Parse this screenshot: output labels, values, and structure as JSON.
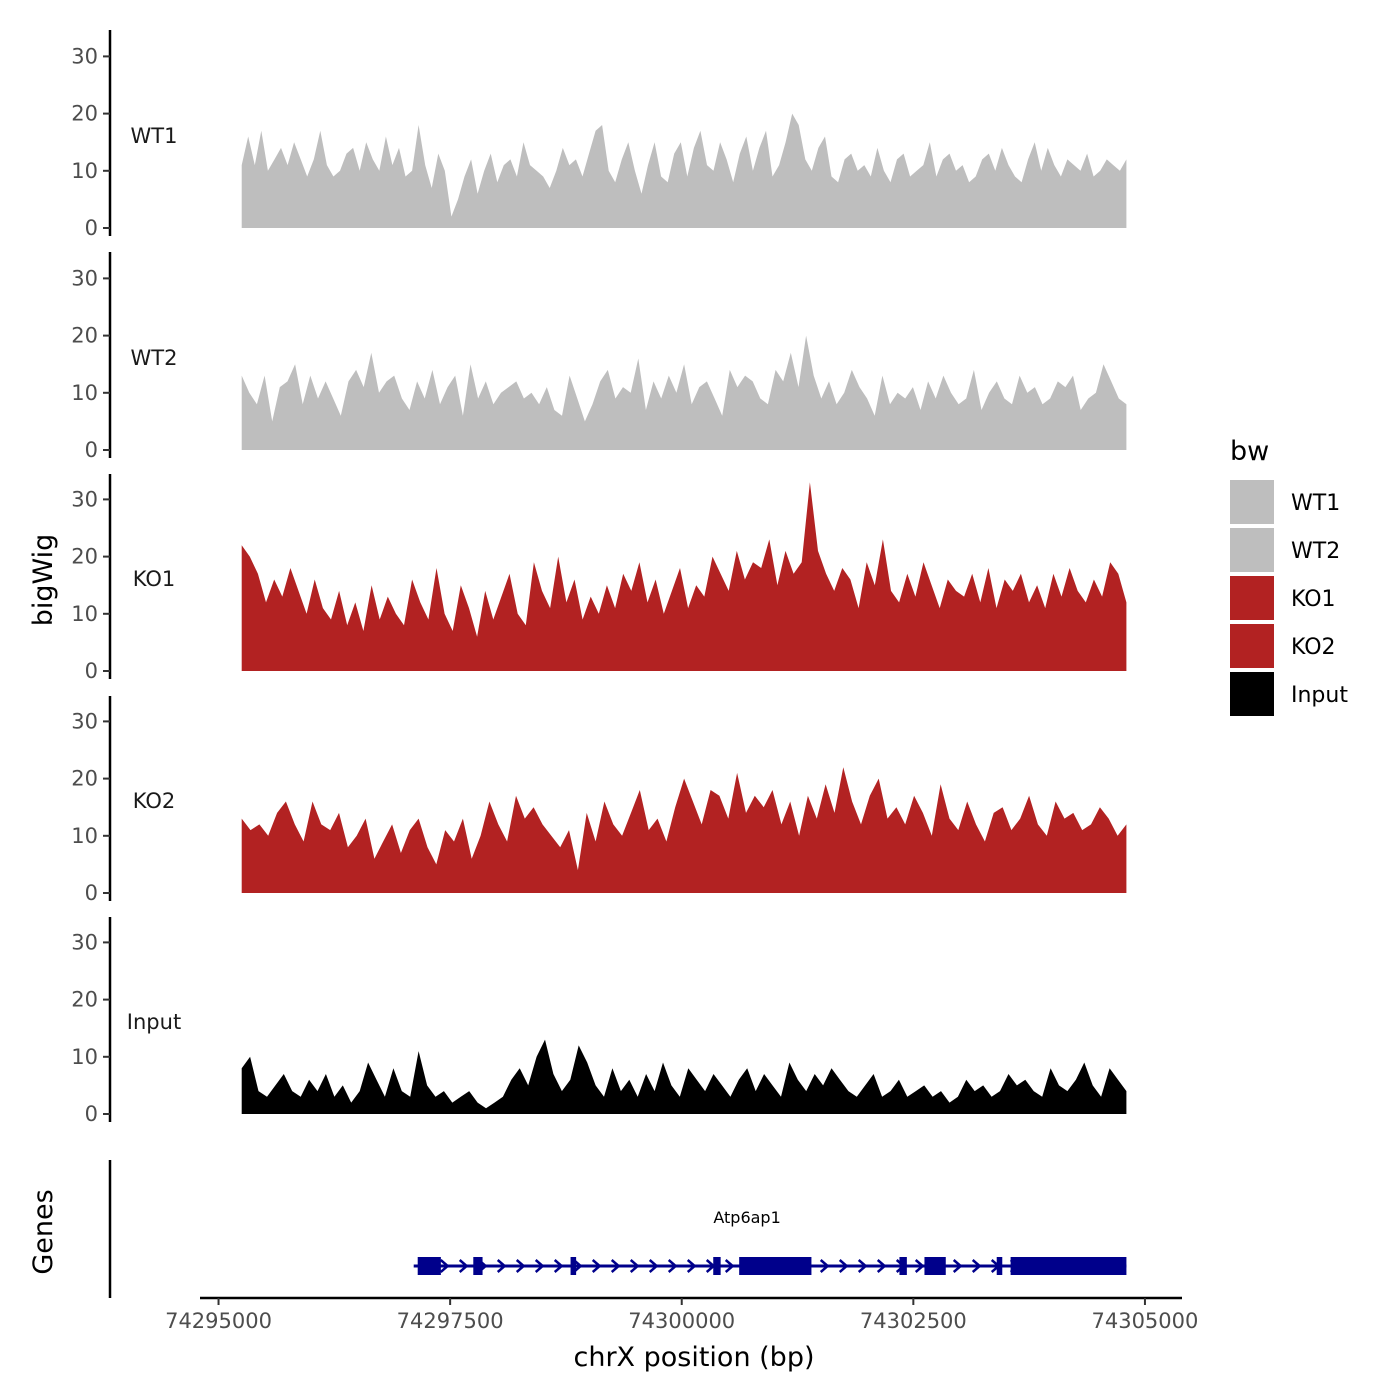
{
  "chart_data": {
    "type": "area",
    "y_axis_title": "bigWig",
    "x_axis_title": "chrX position (bp)",
    "genes_axis_title": "Genes",
    "x_range": [
      74294800,
      74305400
    ],
    "xlim_data": [
      74295250,
      74304800
    ],
    "y_range": [
      0,
      34
    ],
    "y_ticks": [
      0,
      10,
      20,
      30
    ],
    "x_ticks": [
      74295000,
      74297500,
      74300000,
      74302500,
      74305000
    ],
    "x_tick_labels": [
      "74295000",
      "74297500",
      "74300000",
      "74302500",
      "74305000"
    ],
    "legend": {
      "title": "bw",
      "position": "right",
      "items": [
        {
          "label": "WT1",
          "color": "#bebebe"
        },
        {
          "label": "WT2",
          "color": "#bebebe"
        },
        {
          "label": "KO1",
          "color": "#b22222"
        },
        {
          "label": "KO2",
          "color": "#b22222"
        },
        {
          "label": "Input",
          "color": "#000000"
        }
      ]
    },
    "series": [
      {
        "name": "WT1",
        "color": "#bebebe",
        "values": [
          11,
          16,
          11,
          17,
          10,
          12,
          14,
          11,
          15,
          12,
          9,
          12,
          17,
          11,
          9,
          10,
          13,
          14,
          10,
          15,
          12,
          10,
          16,
          11,
          14,
          9,
          10,
          18,
          11,
          7,
          13,
          10,
          2,
          5,
          9,
          12,
          6,
          10,
          13,
          8,
          11,
          12,
          9,
          15,
          11,
          10,
          9,
          7,
          10,
          14,
          11,
          12,
          9,
          13,
          17,
          18,
          10,
          8,
          12,
          15,
          10,
          6,
          11,
          15,
          9,
          8,
          13,
          15,
          9,
          14,
          17,
          11,
          10,
          15,
          12,
          8,
          13,
          16,
          10,
          14,
          17,
          9,
          11,
          15,
          20,
          18,
          12,
          10,
          14,
          16,
          9,
          8,
          12,
          13,
          10,
          11,
          9,
          14,
          10,
          8,
          12,
          13,
          9,
          10,
          11,
          15,
          9,
          12,
          13,
          10,
          11,
          8,
          9,
          12,
          13,
          10,
          14,
          11,
          9,
          8,
          12,
          15,
          10,
          14,
          11,
          9,
          12,
          11,
          10,
          13,
          9,
          10,
          12,
          11,
          10,
          12
        ]
      },
      {
        "name": "WT2",
        "color": "#bebebe",
        "values": [
          13,
          10,
          8,
          13,
          5,
          11,
          12,
          15,
          8,
          13,
          9,
          12,
          9,
          6,
          12,
          14,
          11,
          17,
          10,
          12,
          13,
          9,
          7,
          12,
          9,
          14,
          8,
          11,
          13,
          6,
          15,
          9,
          12,
          8,
          10,
          11,
          12,
          9,
          10,
          8,
          11,
          7,
          6,
          13,
          9,
          5,
          8,
          12,
          14,
          9,
          11,
          10,
          16,
          7,
          12,
          9,
          13,
          10,
          15,
          8,
          11,
          12,
          9,
          6,
          14,
          11,
          13,
          12,
          9,
          8,
          14,
          12,
          17,
          11,
          20,
          13,
          9,
          12,
          8,
          10,
          14,
          11,
          9,
          6,
          13,
          8,
          10,
          9,
          11,
          7,
          12,
          9,
          13,
          10,
          8,
          9,
          14,
          7,
          10,
          12,
          9,
          8,
          13,
          10,
          11,
          8,
          9,
          12,
          11,
          13,
          7,
          9,
          10,
          15,
          12,
          9,
          8
        ]
      },
      {
        "name": "KO1",
        "color": "#b22222",
        "values": [
          22,
          20,
          17,
          12,
          16,
          13,
          18,
          14,
          10,
          16,
          11,
          9,
          14,
          8,
          12,
          7,
          15,
          9,
          13,
          10,
          8,
          16,
          12,
          9,
          18,
          10,
          7,
          15,
          11,
          6,
          14,
          9,
          13,
          17,
          10,
          8,
          19,
          14,
          11,
          20,
          12,
          16,
          9,
          13,
          10,
          15,
          11,
          17,
          14,
          19,
          12,
          16,
          10,
          14,
          18,
          11,
          15,
          13,
          20,
          17,
          14,
          21,
          16,
          19,
          18,
          23,
          15,
          21,
          17,
          19,
          33,
          21,
          17,
          14,
          18,
          16,
          11,
          19,
          15,
          23,
          14,
          12,
          17,
          13,
          19,
          15,
          11,
          16,
          14,
          13,
          17,
          12,
          18,
          11,
          16,
          14,
          17,
          12,
          15,
          11,
          17,
          13,
          18,
          14,
          12,
          16,
          13,
          19,
          17,
          12
        ]
      },
      {
        "name": "KO2",
        "color": "#b22222",
        "values": [
          13,
          11,
          12,
          10,
          14,
          16,
          12,
          9,
          16,
          12,
          11,
          14,
          8,
          10,
          13,
          6,
          9,
          12,
          7,
          11,
          13,
          8,
          5,
          11,
          9,
          13,
          6,
          10,
          16,
          12,
          9,
          17,
          13,
          15,
          12,
          10,
          8,
          11,
          4,
          14,
          9,
          16,
          12,
          10,
          14,
          18,
          11,
          13,
          9,
          15,
          20,
          16,
          12,
          18,
          17,
          13,
          21,
          14,
          17,
          15,
          18,
          12,
          16,
          10,
          17,
          13,
          19,
          14,
          22,
          16,
          12,
          17,
          20,
          13,
          15,
          12,
          17,
          14,
          10,
          19,
          13,
          11,
          16,
          12,
          9,
          14,
          15,
          11,
          13,
          17,
          12,
          10,
          16,
          13,
          14,
          11,
          12,
          15,
          13,
          10,
          12
        ]
      },
      {
        "name": "Input",
        "color": "#000000",
        "values": [
          8,
          10,
          4,
          3,
          5,
          7,
          4,
          3,
          6,
          4,
          7,
          3,
          5,
          2,
          4,
          9,
          6,
          3,
          8,
          4,
          3,
          11,
          5,
          3,
          4,
          2,
          3,
          4,
          2,
          1,
          2,
          3,
          6,
          8,
          5,
          10,
          13,
          7,
          4,
          6,
          12,
          9,
          5,
          3,
          8,
          4,
          6,
          3,
          7,
          4,
          9,
          5,
          3,
          8,
          6,
          4,
          7,
          5,
          3,
          6,
          8,
          4,
          7,
          5,
          3,
          9,
          6,
          4,
          7,
          5,
          8,
          6,
          4,
          3,
          5,
          7,
          3,
          4,
          6,
          3,
          4,
          5,
          3,
          4,
          2,
          3,
          6,
          4,
          5,
          3,
          4,
          7,
          5,
          6,
          4,
          3,
          8,
          5,
          4,
          6,
          9,
          5,
          3,
          8,
          6,
          4
        ]
      }
    ],
    "genes": [
      {
        "name": "Atp6ap1",
        "color": "#00008b",
        "start": 74297150,
        "end": 74304800,
        "strand": "+",
        "exons": [
          {
            "start": 74297150,
            "end": 74297400
          },
          {
            "start": 74297750,
            "end": 74297850
          },
          {
            "start": 74298800,
            "end": 74298860
          },
          {
            "start": 74300340,
            "end": 74300420
          },
          {
            "start": 74300620,
            "end": 74301400
          },
          {
            "start": 74302350,
            "end": 74302430
          },
          {
            "start": 74302620,
            "end": 74302850
          },
          {
            "start": 74303400,
            "end": 74303460
          },
          {
            "start": 74303550,
            "end": 74304800
          }
        ]
      }
    ]
  }
}
